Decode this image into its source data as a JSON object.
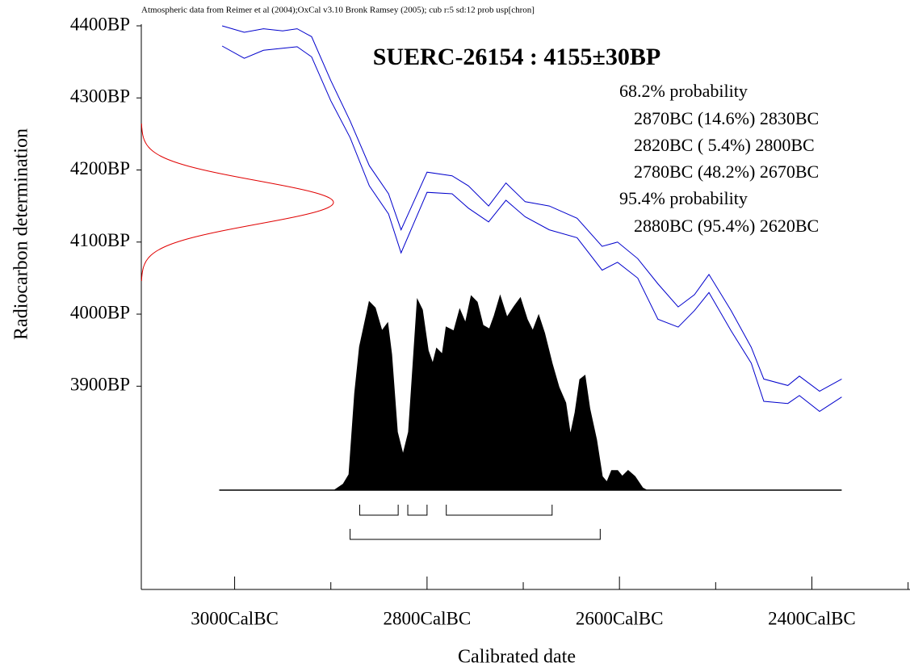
{
  "chart_data": {
    "type": "calibration",
    "header": "Atmospheric data from Reimer et al (2004);OxCal v3.10 Bronk Ramsey (2005); cub r:5 sd:12 prob usp[chron]",
    "title": "SUERC-26154 : 4155±30BP",
    "x_label": "Calibrated date",
    "y_label": "Radiocarbon determination",
    "xlim": [
      3097,
      2298
    ],
    "ylim": [
      3618,
      4400
    ],
    "xticks": [
      {
        "value": 3000,
        "label": "3000CalBC"
      },
      {
        "value": 2800,
        "label": "2800CalBC"
      },
      {
        "value": 2600,
        "label": "2600CalBC"
      },
      {
        "value": 2400,
        "label": "2400CalBC"
      }
    ],
    "xminorticks": [
      2900,
      2700,
      2500,
      2300
    ],
    "yticks": [
      {
        "value": 4400,
        "label": "4400BP"
      },
      {
        "value": 4300,
        "label": "4300BP"
      },
      {
        "value": 4200,
        "label": "4200BP"
      },
      {
        "value": 4100,
        "label": "4100BP"
      },
      {
        "value": 4000,
        "label": "4000BP"
      },
      {
        "value": 3900,
        "label": "3900BP"
      }
    ],
    "measurement": {
      "mean": 4155,
      "sd": 30,
      "color": "#e00000"
    },
    "curve": {
      "color": "#0000cc",
      "x": [
        3013,
        2990,
        2970,
        2950,
        2935,
        2920,
        2900,
        2880,
        2860,
        2840,
        2827,
        2800,
        2774,
        2757,
        2736,
        2718,
        2698,
        2673,
        2644,
        2618,
        2602,
        2581,
        2560,
        2539,
        2522,
        2507,
        2484,
        2463,
        2450,
        2425,
        2413,
        2392,
        2369
      ],
      "upper": [
        4400,
        4391,
        4396,
        4393,
        4396,
        4385,
        4324,
        4268,
        4206,
        4167,
        4117,
        4197,
        4192,
        4178,
        4150,
        4182,
        4156,
        4150,
        4133,
        4094,
        4100,
        4077,
        4042,
        4010,
        4027,
        4055,
        4005,
        3954,
        3910,
        3901,
        3914,
        3893,
        3910
      ],
      "lower": [
        4372,
        4355,
        4366,
        4369,
        4371,
        4357,
        4296,
        4245,
        4178,
        4139,
        4085,
        4169,
        4167,
        4147,
        4128,
        4158,
        4135,
        4117,
        4106,
        4061,
        4072,
        4050,
        3993,
        3982,
        4005,
        4030,
        3977,
        3932,
        3879,
        3876,
        3887,
        3865,
        3885
      ]
    },
    "distribution": {
      "color": "#000000",
      "x": [
        3016,
        2896,
        2887,
        2881,
        2875,
        2870,
        2860,
        2854,
        2847,
        2841,
        2837,
        2831,
        2825,
        2819,
        2810,
        2805,
        2799,
        2794,
        2790,
        2784,
        2780,
        2772,
        2766,
        2760,
        2754,
        2748,
        2742,
        2735,
        2730,
        2724,
        2717,
        2709,
        2703,
        2696,
        2690,
        2684,
        2678,
        2670,
        2663,
        2656,
        2651,
        2646,
        2641,
        2636,
        2631,
        2624,
        2618,
        2613,
        2608,
        2602,
        2597,
        2591,
        2584,
        2576,
        2572,
        2369
      ],
      "values": [
        0,
        0,
        0.03,
        0.08,
        0.5,
        0.74,
        0.97,
        0.94,
        0.82,
        0.86,
        0.7,
        0.3,
        0.18,
        0.3,
        0.98,
        0.93,
        0.72,
        0.65,
        0.73,
        0.7,
        0.84,
        0.82,
        0.93,
        0.86,
        1.0,
        0.97,
        0.85,
        0.83,
        0.9,
        1.0,
        0.89,
        0.95,
        0.99,
        0.88,
        0.82,
        0.9,
        0.81,
        0.65,
        0.53,
        0.45,
        0.28,
        0.4,
        0.57,
        0.59,
        0.42,
        0.26,
        0.07,
        0.04,
        0.1,
        0.1,
        0.07,
        0.1,
        0.07,
        0.01,
        0,
        0
      ]
    },
    "ranges": [
      {
        "label": "68.2% probability",
        "intervals": [
          {
            "from": 2870,
            "to": 2830,
            "label": "2870BC (14.6%) 2830BC"
          },
          {
            "from": 2820,
            "to": 2800,
            "label": "2820BC ( 5.4%) 2800BC"
          },
          {
            "from": 2780,
            "to": 2670,
            "label": "2780BC (48.2%) 2670BC"
          }
        ]
      },
      {
        "label": "95.4% probability",
        "intervals": [
          {
            "from": 2880,
            "to": 2620,
            "label": "2880BC (95.4%) 2620BC"
          }
        ]
      }
    ]
  }
}
